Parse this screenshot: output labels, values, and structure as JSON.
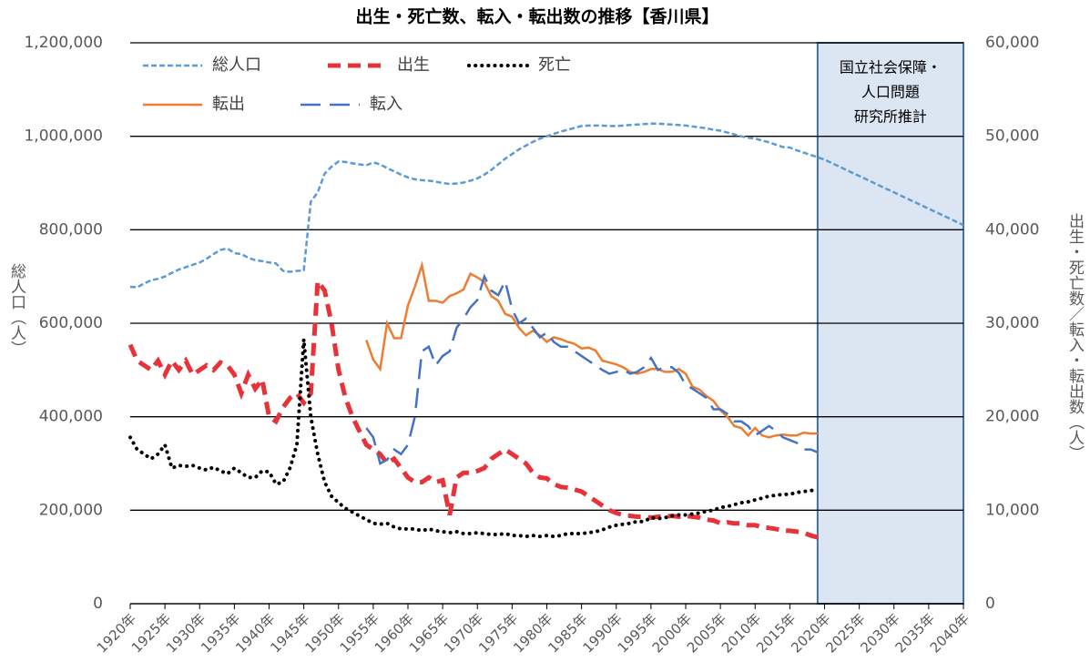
{
  "chart_data": {
    "type": "line",
    "title": "出生・死亡数、転入・転出数の推移【香川県】",
    "y_label": "総人口（人）",
    "y2_label": "出生・死亡数／転入・転出数（人）",
    "x": [
      1920,
      1921,
      1922,
      1923,
      1924,
      1925,
      1926,
      1927,
      1928,
      1929,
      1930,
      1931,
      1932,
      1933,
      1934,
      1935,
      1936,
      1937,
      1938,
      1939,
      1940,
      1941,
      1942,
      1943,
      1944,
      1945,
      1946,
      1947,
      1948,
      1949,
      1950,
      1951,
      1952,
      1953,
      1954,
      1955,
      1956,
      1957,
      1958,
      1959,
      1960,
      1961,
      1962,
      1963,
      1964,
      1965,
      1966,
      1967,
      1968,
      1969,
      1970,
      1971,
      1972,
      1973,
      1974,
      1975,
      1976,
      1977,
      1978,
      1979,
      1980,
      1981,
      1982,
      1983,
      1984,
      1985,
      1986,
      1987,
      1988,
      1989,
      1990,
      1991,
      1992,
      1993,
      1994,
      1995,
      1996,
      1997,
      1998,
      1999,
      2000,
      2001,
      2002,
      2003,
      2004,
      2005,
      2006,
      2007,
      2008,
      2009,
      2010,
      2011,
      2012,
      2013,
      2014,
      2015,
      2016,
      2017,
      2018,
      2019,
      2020,
      2021,
      2022,
      2023,
      2024,
      2025,
      2026,
      2027,
      2028,
      2029,
      2030,
      2031,
      2032,
      2033,
      2034,
      2035,
      2036,
      2037,
      2038,
      2039,
      2040
    ],
    "xlim": [
      1920,
      2040
    ],
    "xticks": [
      {
        "value": 1920,
        "label": "1920年"
      },
      {
        "value": 1925,
        "label": "1925年"
      },
      {
        "value": 1930,
        "label": "1930年"
      },
      {
        "value": 1935,
        "label": "1935年"
      },
      {
        "value": 1940,
        "label": "1940年"
      },
      {
        "value": 1945,
        "label": "1945年"
      },
      {
        "value": 1950,
        "label": "1950年"
      },
      {
        "value": 1955,
        "label": "1955年"
      },
      {
        "value": 1960,
        "label": "1960年"
      },
      {
        "value": 1965,
        "label": "1965年"
      },
      {
        "value": 1970,
        "label": "1970年"
      },
      {
        "value": 1975,
        "label": "1975年"
      },
      {
        "value": 1980,
        "label": "1980年"
      },
      {
        "value": 1985,
        "label": "1985年"
      },
      {
        "value": 1990,
        "label": "1990年"
      },
      {
        "value": 1995,
        "label": "1995年"
      },
      {
        "value": 2000,
        "label": "2000年"
      },
      {
        "value": 2005,
        "label": "2005年"
      },
      {
        "value": 2010,
        "label": "2010年"
      },
      {
        "value": 2015,
        "label": "2015年"
      },
      {
        "value": 2020,
        "label": "2020年"
      },
      {
        "value": 2025,
        "label": "2025年"
      },
      {
        "value": 2030,
        "label": "2030年"
      },
      {
        "value": 2035,
        "label": "2035年"
      },
      {
        "value": 2040,
        "label": "2040年"
      }
    ],
    "ylim": [
      0,
      1200000
    ],
    "yticks": [
      0,
      {
        "value": 200000,
        "label": "200,000"
      },
      {
        "value": 400000,
        "label": "400,000"
      },
      {
        "value": 600000,
        "label": "600,000"
      },
      {
        "value": 800000,
        "label": "800,000"
      },
      {
        "value": 1000000,
        "label": "1,000,000"
      },
      {
        "value": 1200000,
        "label": "1,200,000"
      }
    ],
    "y2lim": [
      0,
      60000
    ],
    "y2ticks": [
      0,
      {
        "value": 10000,
        "label": "10,000"
      },
      {
        "value": 20000,
        "label": "20,000"
      },
      {
        "value": 30000,
        "label": "30,000"
      },
      {
        "value": 40000,
        "label": "40,000"
      },
      {
        "value": 50000,
        "label": "50,000"
      },
      {
        "value": 60000,
        "label": "60,000"
      }
    ],
    "grid": true,
    "legend": "top-left",
    "annotation": {
      "text": [
        "国立社会保障・",
        "人口問題",
        "研究所推計"
      ],
      "x_range": [
        2019,
        2040
      ],
      "color": "#dce6f2"
    },
    "series": [
      {
        "name": "総人口",
        "color": "#5b9bd5",
        "line_style": "dash",
        "axis": "y",
        "values": [
          678000,
          677000,
          685000,
          692000,
          695000,
          700000,
          708000,
          715000,
          720000,
          725000,
          730000,
          738000,
          748000,
          757000,
          760000,
          750000,
          748000,
          740000,
          735000,
          733000,
          730000,
          728000,
          712000,
          710000,
          712000,
          713000,
          860000,
          880000,
          920000,
          935000,
          946000,
          945000,
          942000,
          940000,
          938000,
          944000,
          940000,
          932000,
          925000,
          918000,
          912000,
          908000,
          906000,
          905000,
          903000,
          900000,
          898000,
          899000,
          901000,
          905000,
          910000,
          918000,
          928000,
          940000,
          952000,
          962000,
          972000,
          980000,
          988000,
          995000,
          1000000,
          1005000,
          1010000,
          1014000,
          1018000,
          1022000,
          1023000,
          1023000,
          1023000,
          1022000,
          1022000,
          1023000,
          1024000,
          1025000,
          1026000,
          1027000,
          1027000,
          1026000,
          1025000,
          1024000,
          1023000,
          1021000,
          1019000,
          1017000,
          1014000,
          1012000,
          1008000,
          1004000,
          1000000,
          997000,
          995000,
          991000,
          987000,
          982000,
          977000,
          976000,
          970000,
          965000,
          960000,
          955000,
          950000,
          943000,
          936000,
          929000,
          922000,
          915000,
          908000,
          901000,
          894000,
          887000,
          880000,
          873000,
          866000,
          859000,
          852000,
          845000,
          838000,
          831000,
          824000,
          817000,
          810000
        ]
      },
      {
        "name": "出生",
        "color": "#e8323a",
        "line_style": "dash-thick",
        "axis": "y2",
        "values": [
          27700,
          26000,
          25500,
          25000,
          26000,
          24500,
          26000,
          25000,
          26000,
          24500,
          25000,
          25500,
          25000,
          25800,
          25500,
          24500,
          22500,
          24500,
          23000,
          24000,
          20000,
          19500,
          21000,
          22000,
          22500,
          21500,
          22500,
          34500,
          33500,
          30000,
          25000,
          22000,
          20000,
          18500,
          17000,
          16500,
          16000,
          15000,
          15500,
          14500,
          13500,
          13000,
          13000,
          13500,
          13000,
          13200,
          9500,
          13500,
          14000,
          14000,
          14200,
          14500,
          15500,
          16000,
          16500,
          16000,
          15500,
          15000,
          14000,
          13500,
          13400,
          12800,
          12500,
          12400,
          12200,
          12000,
          11500,
          11000,
          10500,
          10000,
          9700,
          9500,
          9400,
          9300,
          9300,
          9200,
          9300,
          9300,
          9400,
          9300,
          9400,
          9300,
          9200,
          9000,
          8900,
          8600,
          8700,
          8600,
          8600,
          8400,
          8400,
          8200,
          8100,
          8000,
          7800,
          7800,
          7700,
          7600,
          7300,
          7100,
          null,
          null,
          null,
          null,
          null,
          null,
          null,
          null,
          null,
          null,
          null,
          null,
          null,
          null,
          null,
          null,
          null,
          null,
          null,
          null,
          null
        ]
      },
      {
        "name": "死亡",
        "color": "#000000",
        "line_style": "dot",
        "axis": "y2",
        "values": [
          17800,
          16500,
          16000,
          15500,
          16000,
          17000,
          14500,
          14800,
          14700,
          14800,
          14500,
          14300,
          14600,
          14200,
          13900,
          14500,
          14000,
          13500,
          13500,
          14200,
          14100,
          12800,
          13000,
          14500,
          17000,
          28300,
          20000,
          16000,
          13000,
          11500,
          10800,
          10200,
          9800,
          9400,
          9000,
          8600,
          8500,
          8600,
          8200,
          8000,
          8000,
          8000,
          7800,
          8000,
          7800,
          7700,
          7600,
          7700,
          7500,
          7500,
          7600,
          7500,
          7400,
          7400,
          7500,
          7300,
          7300,
          7200,
          7300,
          7200,
          7300,
          7200,
          7300,
          7500,
          7500,
          7500,
          7600,
          7700,
          7900,
          8200,
          8400,
          8500,
          8600,
          8800,
          8800,
          9200,
          9100,
          9200,
          9400,
          9500,
          9500,
          9600,
          9700,
          9900,
          10000,
          10300,
          10400,
          10600,
          10800,
          10900,
          11100,
          11300,
          11500,
          11600,
          11700,
          11700,
          11900,
          12000,
          12100,
          12200,
          null,
          null,
          null,
          null,
          null,
          null,
          null,
          null,
          null,
          null,
          null,
          null,
          null,
          null,
          null,
          null,
          null,
          null,
          null,
          null,
          null
        ]
      },
      {
        "name": "転出",
        "color": "#ed7d31",
        "line_style": "solid",
        "axis": "y2",
        "values": [
          null,
          null,
          null,
          null,
          null,
          null,
          null,
          null,
          null,
          null,
          null,
          null,
          null,
          null,
          null,
          null,
          null,
          null,
          null,
          null,
          null,
          null,
          null,
          null,
          null,
          null,
          null,
          null,
          null,
          null,
          null,
          null,
          null,
          null,
          28200,
          26100,
          25100,
          30000,
          28400,
          28400,
          31900,
          33900,
          36200,
          32400,
          32400,
          32200,
          32900,
          33200,
          33600,
          35300,
          34900,
          34400,
          32900,
          32400,
          31000,
          30700,
          29500,
          28700,
          29200,
          28700,
          28000,
          28500,
          28300,
          28000,
          27800,
          27300,
          27400,
          27100,
          26000,
          25800,
          25600,
          25300,
          24800,
          24600,
          24800,
          25100,
          25100,
          24800,
          24800,
          25100,
          24600,
          23200,
          22900,
          22200,
          21700,
          20700,
          20000,
          19000,
          18800,
          18000,
          18800,
          18000,
          17800,
          18000,
          18100,
          18000,
          18000,
          18300,
          18200,
          18200,
          null,
          null,
          null,
          null,
          null,
          null,
          null,
          null,
          null,
          null,
          null,
          null,
          null,
          null,
          null,
          null,
          null,
          null,
          null,
          null,
          null
        ]
      },
      {
        "name": "転入",
        "color": "#4472c4",
        "line_style": "long-dash",
        "axis": "y2",
        "values": [
          null,
          null,
          null,
          null,
          null,
          null,
          null,
          null,
          null,
          null,
          null,
          null,
          null,
          null,
          null,
          null,
          null,
          null,
          null,
          null,
          null,
          null,
          null,
          null,
          null,
          null,
          null,
          null,
          null,
          null,
          null,
          null,
          null,
          null,
          18800,
          17800,
          15000,
          15400,
          16500,
          16000,
          17000,
          20000,
          27000,
          27500,
          25500,
          26500,
          27000,
          29500,
          30500,
          31700,
          32500,
          35000,
          33500,
          33000,
          34500,
          31500,
          30000,
          30500,
          29500,
          28500,
          29000,
          28000,
          27500,
          27500,
          27000,
          26500,
          26000,
          25500,
          25000,
          24600,
          24800,
          25000,
          24600,
          24800,
          25300,
          26300,
          25000,
          25300,
          25300,
          24700,
          23400,
          23000,
          22500,
          22000,
          20800,
          20800,
          20300,
          19500,
          19500,
          19000,
          18000,
          18500,
          19000,
          18500,
          17800,
          17500,
          17200,
          16500,
          16500,
          16200,
          null,
          null,
          null,
          null,
          null,
          null,
          null,
          null,
          null,
          null,
          null,
          null,
          null,
          null,
          null,
          null,
          null,
          null,
          null,
          null,
          null
        ]
      }
    ]
  }
}
